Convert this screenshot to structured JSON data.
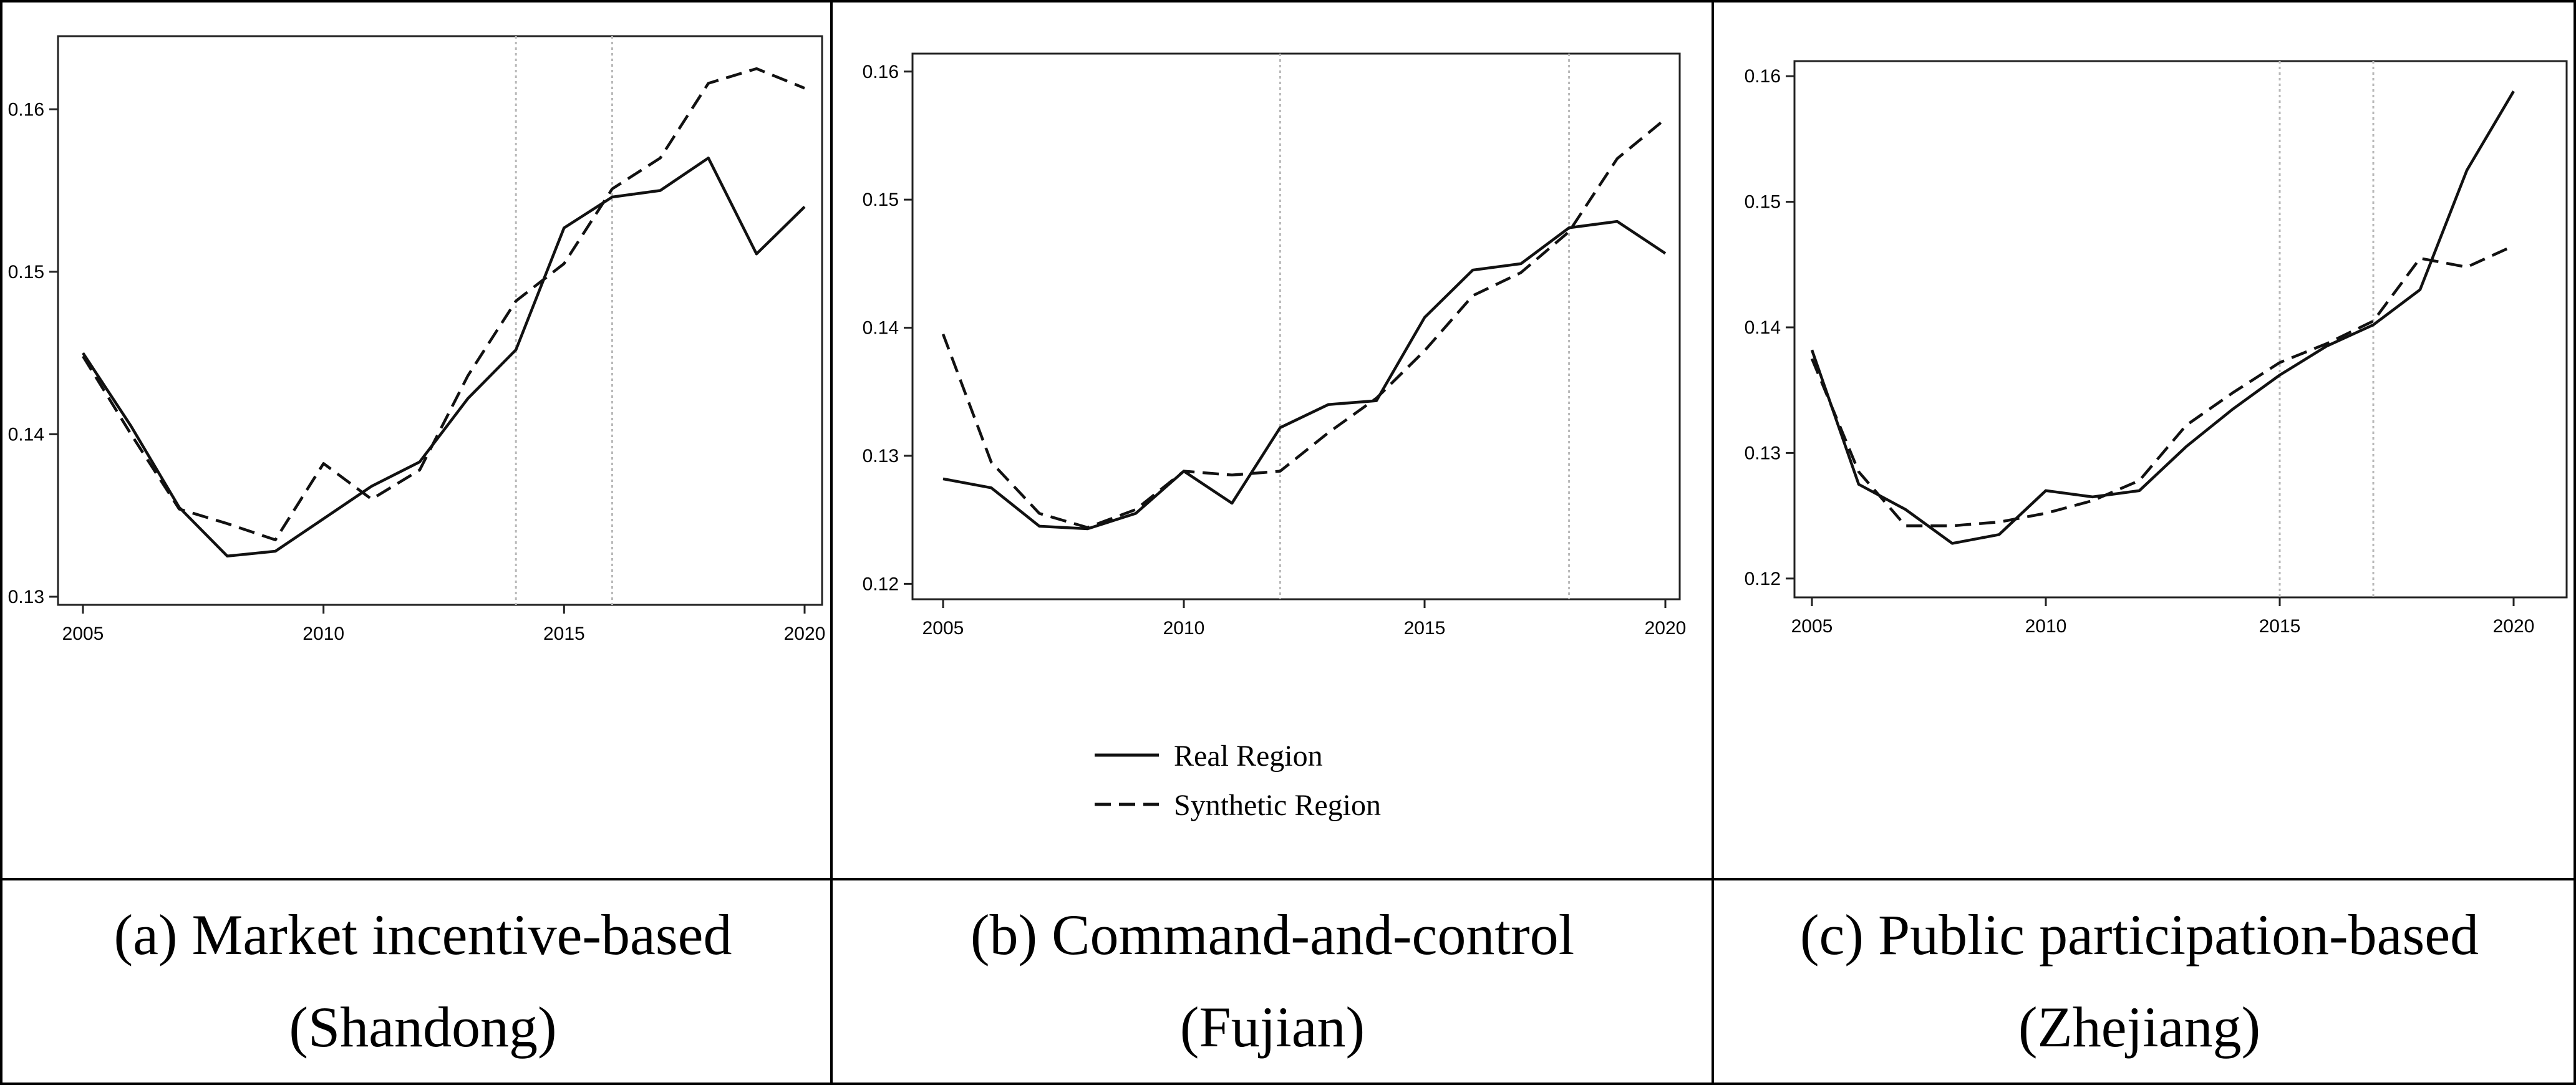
{
  "legend": {
    "real": "Real Region",
    "synthetic": "Synthetic Region"
  },
  "chart_data": [
    {
      "type": "line",
      "caption_line1": "(a) Market incentive-based",
      "caption_line2": "(Shandong)",
      "x": [
        2005,
        2006,
        2007,
        2008,
        2009,
        2010,
        2011,
        2012,
        2013,
        2014,
        2015,
        2016,
        2017,
        2018,
        2019,
        2020
      ],
      "series": [
        {
          "name": "Real Region",
          "values": [
            0.145,
            0.1405,
            0.1355,
            0.1325,
            0.1328,
            0.1348,
            0.1368,
            0.1383,
            0.1422,
            0.1452,
            0.1527,
            0.1546,
            0.155,
            0.157,
            0.1511,
            0.154
          ]
        },
        {
          "name": "Synthetic Region",
          "values": [
            0.1448,
            0.14,
            0.1354,
            0.1345,
            0.1335,
            0.1382,
            0.136,
            0.1378,
            0.1436,
            0.1482,
            0.1505,
            0.1551,
            0.157,
            0.1616,
            0.1625,
            0.1613
          ]
        }
      ],
      "vlines": [
        2014,
        2016
      ],
      "xticks": [
        2005,
        2010,
        2015,
        2020
      ],
      "yticks": [
        0.13,
        0.14,
        0.15,
        0.16
      ],
      "ytick_labels": [
        "0.13",
        "0.14",
        "0.15",
        "0.16"
      ],
      "ylim": [
        0.1295,
        0.1645
      ],
      "xlim": [
        2005,
        2020
      ]
    },
    {
      "type": "line",
      "caption_line1": "(b) Command-and-control",
      "caption_line2": "(Fujian)",
      "x": [
        2005,
        2006,
        2007,
        2008,
        2009,
        2010,
        2011,
        2012,
        2013,
        2014,
        2015,
        2016,
        2017,
        2018,
        2019,
        2020
      ],
      "series": [
        {
          "name": "Real Region",
          "values": [
            0.1282,
            0.1275,
            0.1245,
            0.1243,
            0.1255,
            0.1288,
            0.1263,
            0.1322,
            0.134,
            0.1343,
            0.1408,
            0.1445,
            0.145,
            0.1478,
            0.1483,
            0.1458
          ]
        },
        {
          "name": "Synthetic Region",
          "values": [
            0.1395,
            0.1295,
            0.1255,
            0.1244,
            0.1258,
            0.1288,
            0.1285,
            0.1288,
            0.1318,
            0.1345,
            0.1382,
            0.1425,
            0.1443,
            0.1475,
            0.1532,
            0.1563
          ]
        }
      ],
      "vlines": [
        2012,
        2018
      ],
      "xticks": [
        2005,
        2010,
        2015,
        2020
      ],
      "yticks": [
        0.12,
        0.13,
        0.14,
        0.15,
        0.16
      ],
      "ytick_labels": [
        "0.12",
        "0.13",
        "0.14",
        "0.15",
        "0.16"
      ],
      "ylim": [
        0.1188,
        0.1614
      ],
      "xlim": [
        2005,
        2020
      ]
    },
    {
      "type": "line",
      "caption_line1": "(c) Public participation-based",
      "caption_line2": "(Zhejiang)",
      "x": [
        2005,
        2006,
        2007,
        2008,
        2009,
        2010,
        2011,
        2012,
        2013,
        2014,
        2015,
        2016,
        2017,
        2018,
        2019,
        2020
      ],
      "series": [
        {
          "name": "Real Region",
          "values": [
            0.1382,
            0.1275,
            0.1255,
            0.1228,
            0.1235,
            0.127,
            0.1265,
            0.127,
            0.1305,
            0.1335,
            0.1362,
            0.1385,
            0.1402,
            0.143,
            0.1525,
            0.1588
          ]
        },
        {
          "name": "Synthetic Region",
          "values": [
            0.1375,
            0.1285,
            0.1242,
            0.1242,
            0.1245,
            0.1252,
            0.1262,
            0.1278,
            0.1322,
            0.1348,
            0.1372,
            0.1387,
            0.1405,
            0.1455,
            0.1448,
            0.1465
          ]
        }
      ],
      "vlines": [
        2015,
        2017
      ],
      "xticks": [
        2005,
        2010,
        2015,
        2020
      ],
      "yticks": [
        0.12,
        0.13,
        0.14,
        0.15,
        0.16
      ],
      "ytick_labels": [
        "0.12",
        "0.13",
        "0.14",
        "0.15",
        "0.16"
      ],
      "ylim": [
        0.1185,
        0.1612
      ],
      "xlim": [
        2005,
        2020
      ]
    }
  ]
}
